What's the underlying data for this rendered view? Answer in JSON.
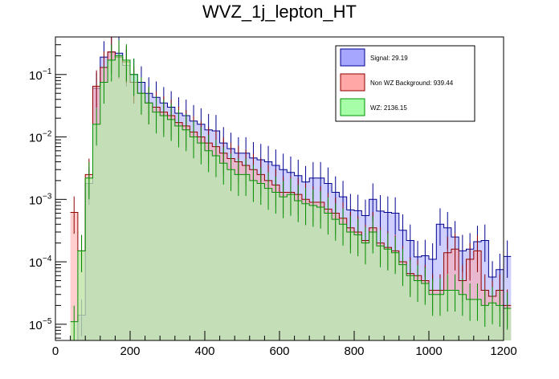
{
  "chart_data": {
    "type": "histogram",
    "title": "WVZ_1j_lepton_HT",
    "xlabel": "",
    "ylabel": "",
    "xlim": [
      0,
      1200
    ],
    "ylim": [
      5.5e-06,
      0.4
    ],
    "yscale": "log",
    "bin_width": 20,
    "bin_start": 40,
    "x_ticks": [
      {
        "value": 0,
        "label": "0"
      },
      {
        "value": 200,
        "label": "200"
      },
      {
        "value": 400,
        "label": "400"
      },
      {
        "value": 600,
        "label": "600"
      },
      {
        "value": 800,
        "label": "800"
      },
      {
        "value": 1000,
        "label": "1000"
      },
      {
        "value": 1200,
        "label": "1200"
      }
    ],
    "y_ticks": [
      {
        "value": 1e-05,
        "base": "10",
        "exp": "−5"
      },
      {
        "value": 0.0001,
        "base": "10",
        "exp": "−4"
      },
      {
        "value": 0.001,
        "base": "10",
        "exp": "−3"
      },
      {
        "value": 0.01,
        "base": "10",
        "exp": "−2"
      },
      {
        "value": 0.1,
        "base": "10",
        "exp": "−1"
      }
    ],
    "legend": [
      {
        "name": "Signal: 29.19",
        "color": "#a6a6ff"
      },
      {
        "name": "Non WZ Background: 939.44",
        "color": "#ffa6a6"
      },
      {
        "name": "WZ: 2136.15",
        "color": "#a6ffa6"
      }
    ],
    "series": [
      {
        "name": "Signal",
        "color": "#a6a6ff",
        "edge": "#000090",
        "values": [
          0,
          1.4e-05,
          0.0018,
          0.06,
          0.19,
          0.23,
          0.22,
          0.14,
          0.1,
          0.075,
          0.05,
          0.043,
          0.035,
          0.03,
          0.024,
          0.022,
          0.018,
          0.016,
          0.013,
          0.0125,
          0.008,
          0.0065,
          0.0055,
          0.0055,
          0.0046,
          0.0043,
          0.004,
          0.0035,
          0.003,
          0.0027,
          0.0024,
          0.0019,
          0.0022,
          0.0022,
          0.0018,
          0.0013,
          0.0011,
          0.00068,
          0.00066,
          0.00055,
          0.001,
          0.00065,
          0.00062,
          0.0006,
          0.00032,
          0.00022,
          0.00012,
          0.000125,
          0.00011,
          0.0004,
          0.00035,
          0.00025,
          0.00015,
          0.00016,
          0.00021,
          0.00022,
          5.7e-05,
          7.5e-05,
          0.000122
        ]
      },
      {
        "name": "Non WZ Background",
        "color": "#ffa6a6",
        "edge": "#900000",
        "values": [
          0.00062,
          0.00015,
          0.0025,
          0.065,
          0.13,
          0.23,
          0.19,
          0.16,
          0.075,
          0.05,
          0.035,
          0.03,
          0.025,
          0.022,
          0.017,
          0.015,
          0.012,
          0.01,
          0.008,
          0.007,
          0.0055,
          0.0045,
          0.004,
          0.0035,
          0.003,
          0.0025,
          0.002,
          0.0017,
          0.0013,
          0.0013,
          0.0012,
          0.001,
          0.0009,
          0.0009,
          0.0007,
          0.0006,
          0.0005,
          0.00035,
          0.0003,
          0.00022,
          0.00035,
          0.0002,
          0.00017,
          0.00015,
          0.0001,
          6.5e-05,
          6e-05,
          5e-05,
          3.5e-05,
          3.5e-05,
          0.00014,
          0.00016,
          5e-05,
          0.00011,
          0.00015,
          3.5e-05,
          2.8e-05,
          3.5e-05,
          2e-05
        ]
      },
      {
        "name": "WZ",
        "color": "#a6ffa6",
        "edge": "#009000",
        "values": [
          1.1e-05,
          0.00015,
          0.0022,
          0.016,
          0.075,
          0.17,
          0.2,
          0.17,
          0.1,
          0.05,
          0.035,
          0.025,
          0.022,
          0.019,
          0.015,
          0.013,
          0.01,
          0.008,
          0.006,
          0.005,
          0.0038,
          0.003,
          0.0025,
          0.0025,
          0.002,
          0.0018,
          0.0015,
          0.0013,
          0.0011,
          0.0012,
          0.00095,
          0.00085,
          0.0008,
          0.00075,
          0.0006,
          0.00048,
          0.0004,
          0.0003,
          0.00027,
          0.0002,
          0.0003,
          0.00018,
          0.00016,
          0.00014,
          9e-05,
          6e-05,
          5e-05,
          4.5e-05,
          3e-05,
          3e-05,
          3.5e-05,
          3.5e-05,
          3e-05,
          2.5e-05,
          2.5e-05,
          2e-05,
          2.2e-05,
          2e-05,
          1.8e-05
        ]
      }
    ]
  }
}
